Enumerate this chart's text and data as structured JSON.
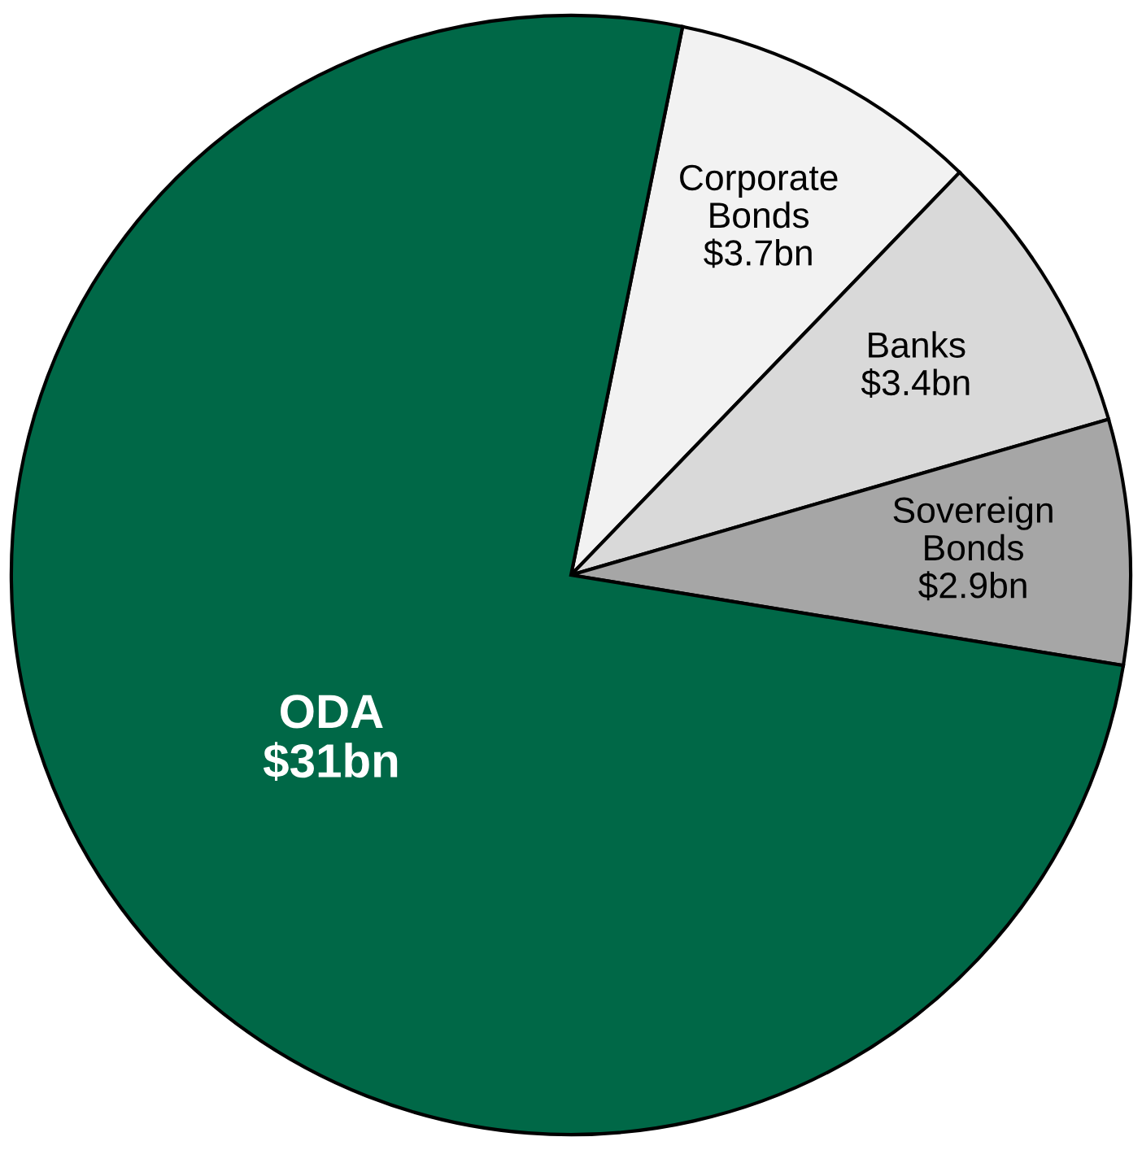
{
  "chart_data": {
    "type": "pie",
    "categories": [
      "Corporate Bonds",
      "Banks",
      "Sovereign Bonds",
      "ODA"
    ],
    "values": [
      3.7,
      3.4,
      2.9,
      31
    ],
    "colors": [
      "#f2f2f2",
      "#d9d9d9",
      "#a6a6a6",
      "#006847"
    ],
    "value_labels": [
      "$3.7bn",
      "$3.4bn",
      "$2.9bn",
      "$31bn"
    ]
  }
}
